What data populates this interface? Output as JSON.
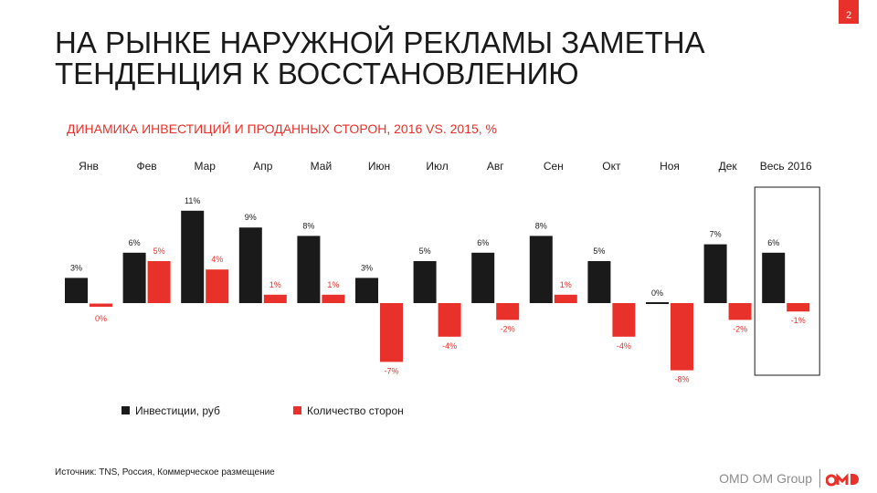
{
  "page": {
    "number": "2"
  },
  "title": {
    "line1": "НА РЫНКЕ НАРУЖНОЙ РЕКЛАМЫ ЗАМЕТНА",
    "line2": "ТЕНДЕНЦИЯ К ВОССТАНОВЛЕНИЮ"
  },
  "chart_data": {
    "type": "bar",
    "title": "ДИНАМИКА ИНВЕСТИЦИЙ И ПРОДАННЫХ СТОРОН, 2016 VS. 2015, %",
    "categories": [
      "Янв",
      "Фев",
      "Мар",
      "Апр",
      "Май",
      "Июн",
      "Июл",
      "Авг",
      "Сен",
      "Окт",
      "Ноя",
      "Дек",
      "Весь 2016"
    ],
    "series": [
      {
        "name": "Инвестиции, руб",
        "color": "#1a1a1a",
        "values": [
          3,
          6,
          11,
          9,
          8,
          3,
          5,
          6,
          8,
          5,
          0,
          7,
          6
        ]
      },
      {
        "name": "Количество сторон",
        "color": "#e8312a",
        "values": [
          0,
          5,
          4,
          1,
          1,
          -7,
          -4,
          -2,
          1,
          -4,
          -8,
          -2,
          -1
        ]
      }
    ],
    "data_labels": true,
    "highlighted_category": "Весь 2016",
    "legend_position": "bottom-left",
    "grid": false
  },
  "source": "Источник: TNS, Россия, Коммерческое размещение",
  "brand": {
    "name": "OMD OM Group",
    "logo": "omd-logo-icon"
  }
}
